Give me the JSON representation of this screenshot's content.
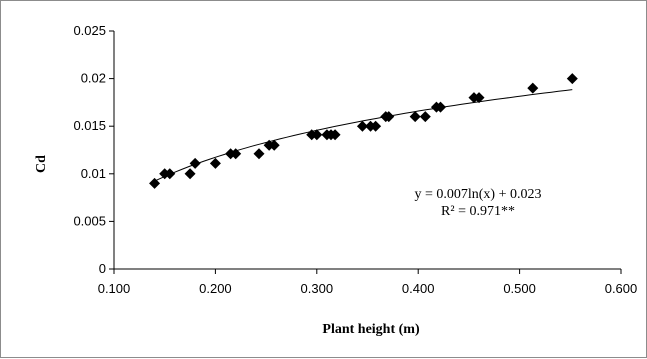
{
  "chart_data": {
    "type": "scatter",
    "title": "",
    "xlabel": "Plant height (m)",
    "ylabel": "Cd",
    "xlim": [
      0.1,
      0.6
    ],
    "ylim": [
      0,
      0.025
    ],
    "x_ticks": [
      "0.100",
      "0.200",
      "0.300",
      "0.400",
      "0.500",
      "0.600"
    ],
    "x_tick_values": [
      0.1,
      0.2,
      0.3,
      0.4,
      0.5,
      0.6
    ],
    "y_ticks": [
      "0",
      "0.005",
      "0.01",
      "0.015",
      "0.02",
      "0.025"
    ],
    "y_tick_values": [
      0,
      0.005,
      0.01,
      0.015,
      0.02,
      0.025
    ],
    "grid": false,
    "legend": "none",
    "marker": "diamond",
    "marker_color": "#000000",
    "series": [
      {
        "x": [
          0.14,
          0.15,
          0.155,
          0.175,
          0.18,
          0.2,
          0.215,
          0.22,
          0.243,
          0.253,
          0.258,
          0.295,
          0.3,
          0.31,
          0.314,
          0.318,
          0.345,
          0.353,
          0.358,
          0.368,
          0.371,
          0.397,
          0.407,
          0.418,
          0.422,
          0.455,
          0.46,
          0.513,
          0.552
        ],
        "y": [
          0.009,
          0.01,
          0.01,
          0.01,
          0.0111,
          0.0111,
          0.0121,
          0.0121,
          0.0121,
          0.013,
          0.013,
          0.0141,
          0.0141,
          0.0141,
          0.0141,
          0.0141,
          0.015,
          0.015,
          0.015,
          0.016,
          0.016,
          0.016,
          0.016,
          0.017,
          0.017,
          0.018,
          0.018,
          0.019,
          0.02
        ]
      }
    ],
    "trendline": {
      "type": "logarithmic",
      "a": 0.007,
      "b": 0.023,
      "x_range": [
        0.14,
        0.552
      ],
      "color": "#000000"
    },
    "annotation": {
      "equation": "y = 0.007ln(x) + 0.023",
      "r_squared": "R² = 0.971**"
    }
  }
}
